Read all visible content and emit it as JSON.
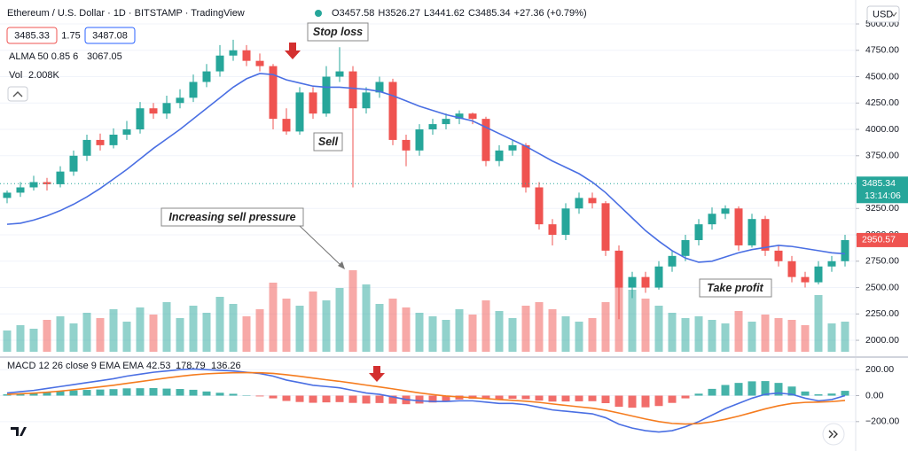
{
  "chart_data": {
    "type": "candlestick",
    "title": "Ethereum / U.S. Dollar · 1D · BITSTAMP · TradingView",
    "ohlc": [
      "O3457.58",
      "H3526.27",
      "L3441.62",
      "C3485.34",
      "+27.36 (+0.79%)"
    ],
    "bid": 3485.33,
    "spread": 1.75,
    "ask": 3487.08,
    "alma_label": "ALMA 50 0.85 6",
    "alma_value": 3067.05,
    "vol_label": "Vol",
    "vol_value": "2.008K",
    "currency": "USD",
    "last_price": 3485.34,
    "countdown": "13:14:06",
    "alma_last": 2950.57,
    "annotations": [
      "Stop loss",
      "Sell",
      "Increasing sell pressure",
      "Take profit"
    ],
    "grid": true,
    "up_color": "#26a69a",
    "down_color": "#ef5350",
    "alma_color": "#4a6fe3",
    "ylim": [
      1866,
      5227
    ],
    "yticks": [
      {
        "value": 5000,
        "label": "5000.00"
      },
      {
        "value": 4750,
        "label": "4750.00"
      },
      {
        "value": 4500,
        "label": "4500.00"
      },
      {
        "value": 4250,
        "label": "4250.00"
      },
      {
        "value": 4000,
        "label": "4000.00"
      },
      {
        "value": 3750,
        "label": "3750.00"
      },
      {
        "value": 3250,
        "label": "3250.00"
      },
      {
        "value": 3000,
        "label": "3000.00"
      },
      {
        "value": 2750,
        "label": "2750.00"
      },
      {
        "value": 2500,
        "label": "2500.00"
      },
      {
        "value": 2250,
        "label": "2250.00"
      },
      {
        "value": 2000,
        "label": "2000.00"
      }
    ],
    "candles": [
      [
        3350,
        3420,
        3300,
        3400
      ],
      [
        3400,
        3500,
        3360,
        3450
      ],
      [
        3450,
        3560,
        3420,
        3500
      ],
      [
        3500,
        3540,
        3420,
        3480
      ],
      [
        3480,
        3650,
        3450,
        3600
      ],
      [
        3600,
        3800,
        3560,
        3750
      ],
      [
        3750,
        3950,
        3700,
        3900
      ],
      [
        3900,
        3960,
        3800,
        3850
      ],
      [
        3850,
        4010,
        3820,
        3950
      ],
      [
        3950,
        4080,
        3900,
        4000
      ],
      [
        4000,
        4260,
        3960,
        4200
      ],
      [
        4200,
        4250,
        4100,
        4150
      ],
      [
        4150,
        4320,
        4100,
        4250
      ],
      [
        4250,
        4380,
        4200,
        4300
      ],
      [
        4300,
        4520,
        4260,
        4450
      ],
      [
        4450,
        4620,
        4400,
        4550
      ],
      [
        4550,
        4800,
        4500,
        4700
      ],
      [
        4700,
        4850,
        4650,
        4750
      ],
      [
        4750,
        4800,
        4600,
        4650
      ],
      [
        4650,
        4720,
        4550,
        4600
      ],
      [
        4600,
        4620,
        4000,
        4100
      ],
      [
        4100,
        4200,
        3950,
        3980
      ],
      [
        3980,
        4400,
        3950,
        4350
      ],
      [
        4350,
        4400,
        4100,
        4150
      ],
      [
        4150,
        4600,
        4120,
        4500
      ],
      [
        4500,
        4780,
        4450,
        4550
      ],
      [
        4550,
        4600,
        3450,
        4200
      ],
      [
        4200,
        4400,
        4150,
        4350
      ],
      [
        4350,
        4500,
        4300,
        4450
      ],
      [
        4450,
        4480,
        3850,
        3900
      ],
      [
        3900,
        3950,
        3650,
        3800
      ],
      [
        3800,
        4050,
        3750,
        4000
      ],
      [
        4000,
        4100,
        3950,
        4050
      ],
      [
        4050,
        4150,
        4000,
        4100
      ],
      [
        4100,
        4180,
        4050,
        4150
      ],
      [
        4150,
        4160,
        4050,
        4100
      ],
      [
        4100,
        4120,
        3650,
        3700
      ],
      [
        3700,
        3850,
        3650,
        3800
      ],
      [
        3800,
        3900,
        3750,
        3850
      ],
      [
        3850,
        3870,
        3400,
        3450
      ],
      [
        3450,
        3500,
        3050,
        3100
      ],
      [
        3100,
        3150,
        2900,
        3000
      ],
      [
        3000,
        3300,
        2950,
        3250
      ],
      [
        3250,
        3400,
        3200,
        3350
      ],
      [
        3350,
        3400,
        3250,
        3300
      ],
      [
        3300,
        3320,
        2800,
        2850
      ],
      [
        2850,
        2900,
        2200,
        2500
      ],
      [
        2500,
        2650,
        2400,
        2600
      ],
      [
        2600,
        2650,
        2450,
        2500
      ],
      [
        2500,
        2750,
        2480,
        2700
      ],
      [
        2700,
        2850,
        2650,
        2800
      ],
      [
        2800,
        3000,
        2750,
        2950
      ],
      [
        2950,
        3150,
        2900,
        3100
      ],
      [
        3100,
        3260,
        3050,
        3200
      ],
      [
        3200,
        3280,
        3150,
        3250
      ],
      [
        3250,
        3270,
        2850,
        2900
      ],
      [
        2900,
        3200,
        2880,
        3150
      ],
      [
        3150,
        3180,
        2800,
        2850
      ],
      [
        2850,
        2900,
        2700,
        2750
      ],
      [
        2750,
        2800,
        2550,
        2600
      ],
      [
        2600,
        2650,
        2500,
        2550
      ],
      [
        2550,
        2750,
        2530,
        2700
      ],
      [
        2700,
        2800,
        2650,
        2750
      ],
      [
        2750,
        3000,
        2700,
        2950
      ]
    ],
    "alma": [
      3100,
      3110,
      3140,
      3180,
      3230,
      3290,
      3360,
      3440,
      3530,
      3620,
      3720,
      3820,
      3910,
      4000,
      4100,
      4200,
      4300,
      4400,
      4480,
      4530,
      4520,
      4470,
      4440,
      4410,
      4400,
      4400,
      4390,
      4380,
      4360,
      4320,
      4270,
      4220,
      4180,
      4140,
      4110,
      4080,
      4020,
      3960,
      3900,
      3840,
      3770,
      3700,
      3640,
      3580,
      3500,
      3400,
      3280,
      3160,
      3040,
      2940,
      2850,
      2780,
      2740,
      2750,
      2790,
      2830,
      2860,
      2880,
      2900,
      2890,
      2870,
      2850,
      2830,
      2820
    ],
    "volume": [
      1.2,
      1.5,
      1.3,
      1.8,
      2.0,
      1.6,
      2.2,
      1.9,
      2.4,
      1.7,
      2.5,
      2.1,
      2.8,
      1.9,
      2.6,
      2.2,
      3.1,
      2.7,
      2.0,
      2.4,
      3.9,
      3.0,
      2.6,
      3.4,
      2.9,
      3.6,
      4.6,
      3.8,
      2.7,
      3.0,
      2.5,
      2.2,
      2.0,
      1.8,
      2.4,
      2.1,
      2.9,
      2.3,
      1.9,
      2.6,
      2.8,
      2.4,
      2.0,
      1.7,
      1.9,
      2.8,
      4.2,
      3.5,
      3.0,
      2.6,
      2.2,
      1.9,
      2.0,
      1.8,
      1.6,
      2.3,
      1.7,
      2.1,
      1.9,
      1.8,
      1.5,
      3.2,
      1.6,
      1.7
    ],
    "vlim": [
      0,
      5
    ],
    "macd_label": "MACD 12 26 close 9 EMA EMA",
    "macd_values": [
      42.53,
      178.79,
      136.26
    ],
    "macd_color": "#4a6fe3",
    "signal_color": "#f57c1f",
    "macd": [
      20,
      30,
      40,
      55,
      70,
      85,
      100,
      115,
      130,
      150,
      165,
      180,
      190,
      200,
      205,
      200,
      195,
      190,
      180,
      170,
      150,
      120,
      100,
      80,
      70,
      60,
      40,
      20,
      10,
      -10,
      -30,
      -40,
      -45,
      -45,
      -40,
      -40,
      -50,
      -60,
      -60,
      -70,
      -90,
      -110,
      -120,
      -130,
      -140,
      -170,
      -220,
      -250,
      -270,
      -280,
      -270,
      -240,
      -200,
      -150,
      -100,
      -60,
      -20,
      10,
      20,
      10,
      -20,
      -40,
      -30,
      0
    ],
    "signal": [
      10,
      14,
      19,
      26,
      35,
      45,
      56,
      68,
      80,
      94,
      108,
      122,
      136,
      149,
      160,
      168,
      173,
      176,
      177,
      176,
      171,
      161,
      149,
      135,
      122,
      110,
      96,
      81,
      67,
      52,
      36,
      21,
      8,
      -3,
      -10,
      -16,
      -23,
      -30,
      -36,
      -43,
      -52,
      -64,
      -75,
      -86,
      -97,
      -112,
      -134,
      -157,
      -180,
      -200,
      -214,
      -219,
      -215,
      -202,
      -182,
      -158,
      -130,
      -102,
      -78,
      -60,
      -52,
      -50,
      -46,
      -37
    ],
    "hist": [
      10,
      16,
      21,
      29,
      35,
      40,
      44,
      47,
      50,
      56,
      57,
      58,
      54,
      51,
      45,
      32,
      22,
      14,
      3,
      -6,
      -21,
      -41,
      -49,
      -55,
      -52,
      -50,
      -56,
      -61,
      -57,
      -62,
      -66,
      -61,
      -53,
      -42,
      -30,
      -24,
      -27,
      -30,
      -24,
      -27,
      -38,
      -46,
      -45,
      -44,
      -43,
      -58,
      -86,
      -93,
      -90,
      -80,
      -56,
      -21,
      15,
      52,
      82,
      98,
      110,
      112,
      98,
      70,
      32,
      10,
      16,
      37
    ],
    "y2lim": [
      -365,
      290
    ],
    "y2ticks": [
      {
        "value": 200,
        "label": "200.00"
      },
      {
        "value": 0,
        "label": "0.00"
      },
      {
        "value": -200,
        "label": "−200.00"
      }
    ]
  }
}
